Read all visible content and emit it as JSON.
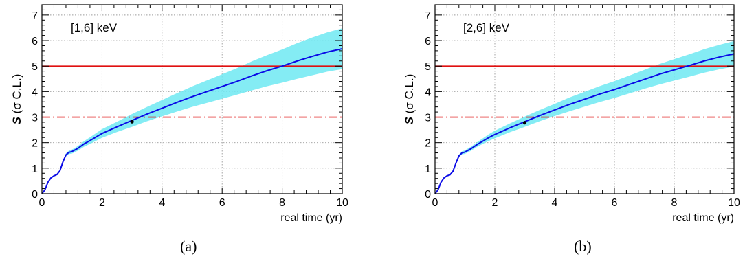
{
  "colors": {
    "curve": "#0a0ae6",
    "band": "#6fe9f2",
    "line5": "#e01010",
    "line3": "#e01010",
    "axis": "#000000",
    "grid": "#9a9a9a",
    "marker": "#000000"
  },
  "chart_data": [
    {
      "id": "panel-a",
      "type": "line",
      "caption": "(a)",
      "annotation": "[1,6] keV",
      "ylabel_symbol": "S",
      "ylabel_rest": "(σ C.L.)",
      "xlabel": "real time (yr)",
      "xlim": [
        0,
        10
      ],
      "ylim": [
        0,
        7.4
      ],
      "xticks": [
        0,
        2,
        4,
        6,
        8,
        10
      ],
      "yticks": [
        0,
        1,
        2,
        3,
        4,
        5,
        6,
        7
      ],
      "grid": true,
      "hlines": [
        {
          "y": 5,
          "style": "solid"
        },
        {
          "y": 3,
          "style": "dashdot"
        }
      ],
      "point": {
        "x": 3.0,
        "y": 2.82
      },
      "series": [
        {
          "x": [
            0,
            0.1,
            0.2,
            0.3,
            0.4,
            0.5,
            0.6,
            0.7,
            0.8,
            0.9,
            1.0,
            1.2,
            1.4,
            1.6,
            1.8,
            2.0,
            2.5,
            3.0,
            3.5,
            4.0,
            4.5,
            5.0,
            5.5,
            6.0,
            6.5,
            7.0,
            7.5,
            8.0,
            8.5,
            9.0,
            9.5,
            10.0
          ],
          "values": [
            0,
            0.15,
            0.45,
            0.62,
            0.7,
            0.75,
            0.9,
            1.25,
            1.52,
            1.62,
            1.65,
            1.78,
            1.95,
            2.08,
            2.22,
            2.36,
            2.62,
            2.87,
            3.12,
            3.35,
            3.58,
            3.8,
            4.0,
            4.2,
            4.4,
            4.62,
            4.82,
            5.0,
            5.2,
            5.38,
            5.55,
            5.68
          ],
          "lower": [
            0,
            0.14,
            0.43,
            0.6,
            0.68,
            0.73,
            0.87,
            1.2,
            1.46,
            1.55,
            1.57,
            1.69,
            1.84,
            1.95,
            2.07,
            2.19,
            2.42,
            2.62,
            2.84,
            3.03,
            3.22,
            3.4,
            3.56,
            3.72,
            3.88,
            4.05,
            4.21,
            4.35,
            4.5,
            4.64,
            4.78,
            4.88
          ],
          "upper": [
            0,
            0.16,
            0.47,
            0.64,
            0.72,
            0.77,
            0.93,
            1.3,
            1.58,
            1.69,
            1.73,
            1.87,
            2.06,
            2.21,
            2.37,
            2.53,
            2.82,
            3.12,
            3.4,
            3.67,
            3.94,
            4.2,
            4.44,
            4.68,
            4.92,
            5.19,
            5.43,
            5.65,
            5.9,
            6.12,
            6.32,
            6.48
          ]
        }
      ]
    },
    {
      "id": "panel-b",
      "type": "line",
      "caption": "(b)",
      "annotation": "[2,6] keV",
      "ylabel_symbol": "S",
      "ylabel_rest": "(σ C.L.)",
      "xlabel": "real time (yr)",
      "xlim": [
        0,
        10
      ],
      "ylim": [
        0,
        7.4
      ],
      "xticks": [
        0,
        2,
        4,
        6,
        8,
        10
      ],
      "yticks": [
        0,
        1,
        2,
        3,
        4,
        5,
        6,
        7
      ],
      "grid": true,
      "hlines": [
        {
          "y": 5,
          "style": "solid"
        },
        {
          "y": 3,
          "style": "dashdot"
        }
      ],
      "point": {
        "x": 3.0,
        "y": 2.78
      },
      "series": [
        {
          "x": [
            0,
            0.1,
            0.2,
            0.3,
            0.4,
            0.5,
            0.6,
            0.7,
            0.8,
            0.9,
            1.0,
            1.2,
            1.4,
            1.6,
            1.8,
            2.0,
            2.5,
            3.0,
            3.5,
            4.0,
            4.5,
            5.0,
            5.5,
            6.0,
            6.5,
            7.0,
            7.5,
            8.0,
            8.5,
            9.0,
            9.5,
            10.0
          ],
          "values": [
            0,
            0.15,
            0.45,
            0.62,
            0.7,
            0.74,
            0.88,
            1.2,
            1.48,
            1.6,
            1.63,
            1.76,
            1.92,
            2.06,
            2.2,
            2.32,
            2.58,
            2.82,
            3.06,
            3.28,
            3.5,
            3.7,
            3.9,
            4.08,
            4.28,
            4.48,
            4.68,
            4.85,
            5.02,
            5.2,
            5.35,
            5.48
          ],
          "lower": [
            0,
            0.14,
            0.43,
            0.6,
            0.68,
            0.72,
            0.85,
            1.16,
            1.43,
            1.54,
            1.56,
            1.68,
            1.83,
            1.95,
            2.07,
            2.17,
            2.41,
            2.62,
            2.84,
            3.04,
            3.23,
            3.41,
            3.59,
            3.75,
            3.93,
            4.11,
            4.28,
            4.43,
            4.58,
            4.74,
            4.87,
            4.98
          ],
          "upper": [
            0,
            0.16,
            0.47,
            0.64,
            0.72,
            0.76,
            0.91,
            1.24,
            1.53,
            1.66,
            1.7,
            1.84,
            2.01,
            2.17,
            2.33,
            2.47,
            2.75,
            3.02,
            3.28,
            3.52,
            3.77,
            3.99,
            4.21,
            4.41,
            4.63,
            4.85,
            5.08,
            5.27,
            5.46,
            5.66,
            5.83,
            5.98
          ]
        }
      ]
    }
  ]
}
